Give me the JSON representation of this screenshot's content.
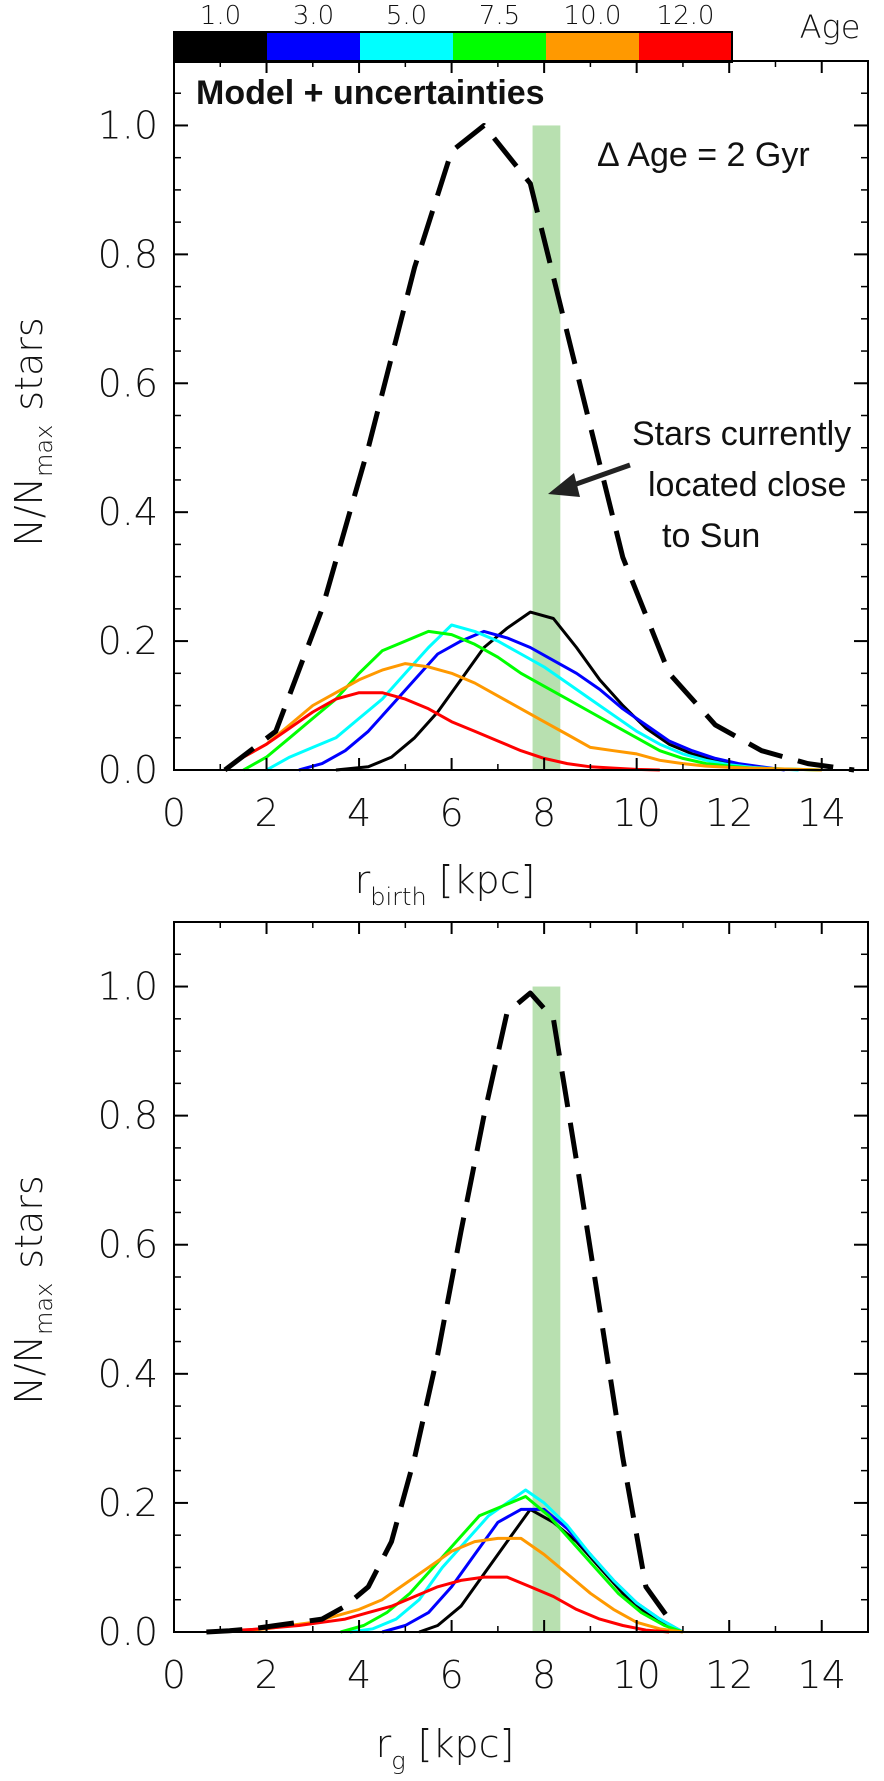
{
  "colorbar": {
    "title": "Age",
    "entries": [
      {
        "label": "1.0",
        "color": "#000000"
      },
      {
        "label": "3.0",
        "color": "#0000ff"
      },
      {
        "label": "5.0",
        "color": "#00ffff"
      },
      {
        "label": "7.5",
        "color": "#00ff00"
      },
      {
        "label": "10.0",
        "color": "#ff9900"
      },
      {
        "label": "12.0",
        "color": "#ff0000"
      }
    ]
  },
  "chart_data": [
    {
      "type": "line",
      "panel": "top",
      "title_annotation": "Model + uncertainties",
      "delta_annotation": "Δ Age = 2 Gyr",
      "arrow_annotation": [
        "Stars currently",
        "located close",
        "to Sun"
      ],
      "xlabel_main": "r",
      "xlabel_sub": "birth",
      "xlabel_unit": "[kpc]",
      "ylabel_main": "N/N",
      "ylabel_sub": "max",
      "ylabel_tail": "stars",
      "xlim": [
        0,
        15
      ],
      "ylim": [
        0,
        1.1
      ],
      "xticks": [
        "0",
        "2",
        "4",
        "6",
        "8",
        "10",
        "12",
        "14"
      ],
      "yticks": [
        "0.0",
        "0.2",
        "0.4",
        "0.6",
        "0.8",
        "1.0"
      ],
      "band": [
        7.75,
        8.35
      ],
      "band_color": "#b8e0b0",
      "series": [
        {
          "style": "dashed",
          "color": "#000000",
          "x": [
            1.1,
            2.2,
            3.2,
            4.2,
            5.2,
            6.0,
            6.7,
            7.7,
            8.7,
            9.7,
            10.7,
            11.7,
            12.7,
            13.7,
            14.7
          ],
          "y": [
            0.0,
            0.06,
            0.25,
            0.5,
            0.78,
            0.96,
            1.0,
            0.91,
            0.62,
            0.33,
            0.15,
            0.07,
            0.03,
            0.01,
            0.0
          ]
        },
        {
          "style": "solid",
          "color": "#000000",
          "x": [
            3.5,
            4.2,
            4.7,
            5.2,
            5.7,
            6.2,
            6.7,
            7.2,
            7.7,
            8.2,
            8.7,
            9.2,
            9.7,
            10.2,
            10.7,
            11.2,
            11.7,
            12.2,
            12.7
          ],
          "y": [
            0.0,
            0.005,
            0.02,
            0.05,
            0.09,
            0.14,
            0.19,
            0.22,
            0.245,
            0.235,
            0.19,
            0.14,
            0.1,
            0.065,
            0.04,
            0.025,
            0.015,
            0.008,
            0.003
          ]
        },
        {
          "style": "solid",
          "color": "#0000ff",
          "x": [
            2.7,
            3.2,
            3.7,
            4.2,
            4.7,
            5.2,
            5.7,
            6.2,
            6.7,
            7.2,
            7.7,
            8.2,
            8.7,
            9.2,
            9.7,
            10.2,
            10.7,
            11.2,
            11.7,
            12.2,
            12.7,
            13.2
          ],
          "y": [
            0.0,
            0.01,
            0.03,
            0.06,
            0.1,
            0.14,
            0.18,
            0.2,
            0.215,
            0.205,
            0.19,
            0.17,
            0.15,
            0.125,
            0.095,
            0.07,
            0.045,
            0.03,
            0.018,
            0.01,
            0.005,
            0.0
          ]
        },
        {
          "style": "solid",
          "color": "#00ffff",
          "x": [
            2.0,
            2.5,
            3.0,
            3.5,
            4.0,
            4.5,
            5.0,
            5.5,
            6.0,
            6.5,
            7.0,
            7.5,
            8.0,
            8.5,
            9.0,
            9.5,
            10.0,
            10.5,
            11.0,
            11.5,
            12.0,
            12.5,
            13.0,
            13.5
          ],
          "y": [
            0.0,
            0.02,
            0.035,
            0.05,
            0.08,
            0.11,
            0.15,
            0.19,
            0.225,
            0.215,
            0.2,
            0.18,
            0.16,
            0.135,
            0.11,
            0.085,
            0.06,
            0.04,
            0.025,
            0.015,
            0.008,
            0.004,
            0.002,
            0.0
          ]
        },
        {
          "style": "solid",
          "color": "#00ff00",
          "x": [
            1.5,
            2.0,
            2.5,
            3.0,
            3.5,
            4.0,
            4.5,
            5.0,
            5.5,
            6.0,
            6.5,
            7.0,
            7.5,
            8.0,
            8.5,
            9.0,
            9.5,
            10.0,
            10.5,
            11.0,
            11.5,
            12.0,
            12.5,
            13.0,
            13.5,
            14.0
          ],
          "y": [
            0.0,
            0.02,
            0.05,
            0.08,
            0.11,
            0.15,
            0.185,
            0.2,
            0.215,
            0.21,
            0.195,
            0.175,
            0.15,
            0.13,
            0.11,
            0.09,
            0.07,
            0.05,
            0.03,
            0.018,
            0.01,
            0.006,
            0.003,
            0.002,
            0.001,
            0.0
          ]
        },
        {
          "style": "solid",
          "color": "#ff9900",
          "x": [
            1.1,
            1.5,
            2.0,
            2.5,
            3.0,
            3.5,
            4.0,
            4.5,
            5.0,
            5.5,
            6.0,
            6.5,
            7.0,
            7.5,
            8.0,
            8.5,
            9.0,
            9.5,
            10.0,
            10.5,
            11.0,
            11.5,
            12.0,
            12.5,
            13.0,
            13.5,
            14.0
          ],
          "y": [
            0.0,
            0.02,
            0.04,
            0.07,
            0.1,
            0.12,
            0.14,
            0.155,
            0.165,
            0.16,
            0.15,
            0.135,
            0.115,
            0.095,
            0.075,
            0.055,
            0.035,
            0.03,
            0.025,
            0.015,
            0.01,
            0.006,
            0.004,
            0.003,
            0.002,
            0.001,
            0.0
          ]
        },
        {
          "style": "solid",
          "color": "#ff0000",
          "x": [
            1.1,
            1.5,
            2.0,
            2.5,
            3.0,
            3.5,
            4.0,
            4.5,
            5.0,
            5.5,
            6.0,
            6.5,
            7.0,
            7.5,
            8.0,
            8.5,
            9.0,
            9.5,
            10.0,
            10.5
          ],
          "y": [
            0.0,
            0.02,
            0.04,
            0.065,
            0.09,
            0.11,
            0.12,
            0.12,
            0.11,
            0.095,
            0.075,
            0.06,
            0.045,
            0.03,
            0.018,
            0.01,
            0.005,
            0.003,
            0.001,
            0.0
          ]
        }
      ]
    },
    {
      "type": "line",
      "panel": "bottom",
      "xlabel_main": "r",
      "xlabel_sub": "g",
      "xlabel_unit": "[kpc]",
      "ylabel_main": "N/N",
      "ylabel_sub": "max",
      "ylabel_tail": "stars",
      "xlim": [
        0,
        15
      ],
      "ylim": [
        0,
        1.1
      ],
      "xticks": [
        "0",
        "2",
        "4",
        "6",
        "8",
        "10",
        "12",
        "14"
      ],
      "yticks": [
        "0.0",
        "0.2",
        "0.4",
        "0.6",
        "0.8",
        "1.0"
      ],
      "band": [
        7.75,
        8.35
      ],
      "band_color": "#b8e0b0",
      "series": [
        {
          "style": "dashed",
          "color": "#000000",
          "x": [
            0.7,
            1.2,
            1.7,
            2.2,
            2.7,
            3.2,
            3.7,
            4.2,
            4.7,
            5.2,
            5.7,
            6.2,
            6.7,
            7.2,
            7.7,
            8.2,
            8.7,
            9.2,
            9.7,
            10.2,
            10.7
          ],
          "y": [
            0.0,
            0.002,
            0.005,
            0.01,
            0.015,
            0.02,
            0.04,
            0.07,
            0.14,
            0.27,
            0.43,
            0.62,
            0.8,
            0.96,
            0.99,
            0.95,
            0.73,
            0.5,
            0.27,
            0.07,
            0.02
          ]
        },
        {
          "style": "solid",
          "color": "#000000",
          "x": [
            5.3,
            5.7,
            6.2,
            6.7,
            7.2,
            7.7,
            8.2,
            8.7,
            9.2,
            9.7,
            10.2,
            10.7,
            11.0
          ],
          "y": [
            0.0,
            0.01,
            0.04,
            0.09,
            0.14,
            0.19,
            0.17,
            0.14,
            0.1,
            0.06,
            0.03,
            0.01,
            0.0
          ]
        },
        {
          "style": "solid",
          "color": "#0000ff",
          "x": [
            4.5,
            5.0,
            5.5,
            6.0,
            6.5,
            7.0,
            7.5,
            8.0,
            8.5,
            9.0,
            9.5,
            10.0,
            10.5,
            11.0
          ],
          "y": [
            0.0,
            0.01,
            0.03,
            0.07,
            0.12,
            0.17,
            0.19,
            0.19,
            0.16,
            0.12,
            0.08,
            0.045,
            0.02,
            0.0
          ]
        },
        {
          "style": "solid",
          "color": "#00ffff",
          "x": [
            3.8,
            4.3,
            4.8,
            5.3,
            5.8,
            6.3,
            6.8,
            7.3,
            7.6,
            8.0,
            8.5,
            9.0,
            9.5,
            10.0,
            10.5,
            11.0
          ],
          "y": [
            0.0,
            0.005,
            0.02,
            0.05,
            0.1,
            0.14,
            0.18,
            0.205,
            0.22,
            0.2,
            0.165,
            0.12,
            0.08,
            0.045,
            0.02,
            0.0
          ]
        },
        {
          "style": "solid",
          "color": "#00ff00",
          "x": [
            3.6,
            4.1,
            4.6,
            5.1,
            5.6,
            6.1,
            6.6,
            7.1,
            7.6,
            8.1,
            8.6,
            9.1,
            9.6,
            10.1,
            10.6,
            11.0
          ],
          "y": [
            0.0,
            0.01,
            0.03,
            0.06,
            0.1,
            0.14,
            0.18,
            0.195,
            0.21,
            0.18,
            0.14,
            0.1,
            0.06,
            0.03,
            0.01,
            0.0
          ]
        },
        {
          "style": "solid",
          "color": "#ff9900",
          "x": [
            1.0,
            1.5,
            2.0,
            2.5,
            3.0,
            3.5,
            4.0,
            4.5,
            5.0,
            5.5,
            6.0,
            6.5,
            7.0,
            7.5,
            8.0,
            8.5,
            9.0,
            9.5,
            10.0,
            10.5,
            11.0
          ],
          "y": [
            0.0,
            0.002,
            0.005,
            0.01,
            0.015,
            0.025,
            0.035,
            0.05,
            0.075,
            0.1,
            0.125,
            0.14,
            0.145,
            0.145,
            0.12,
            0.09,
            0.06,
            0.035,
            0.015,
            0.005,
            0.0
          ]
        },
        {
          "style": "solid",
          "color": "#ff0000",
          "x": [
            0.7,
            1.2,
            1.7,
            2.2,
            2.7,
            3.2,
            3.7,
            4.2,
            4.7,
            5.2,
            5.7,
            6.2,
            6.7,
            7.2,
            7.7,
            8.2,
            8.7,
            9.2,
            9.7,
            10.2,
            10.7
          ],
          "y": [
            0.0,
            0.002,
            0.004,
            0.007,
            0.01,
            0.015,
            0.02,
            0.03,
            0.04,
            0.055,
            0.07,
            0.08,
            0.085,
            0.085,
            0.07,
            0.055,
            0.035,
            0.02,
            0.01,
            0.003,
            0.0
          ]
        }
      ]
    }
  ]
}
